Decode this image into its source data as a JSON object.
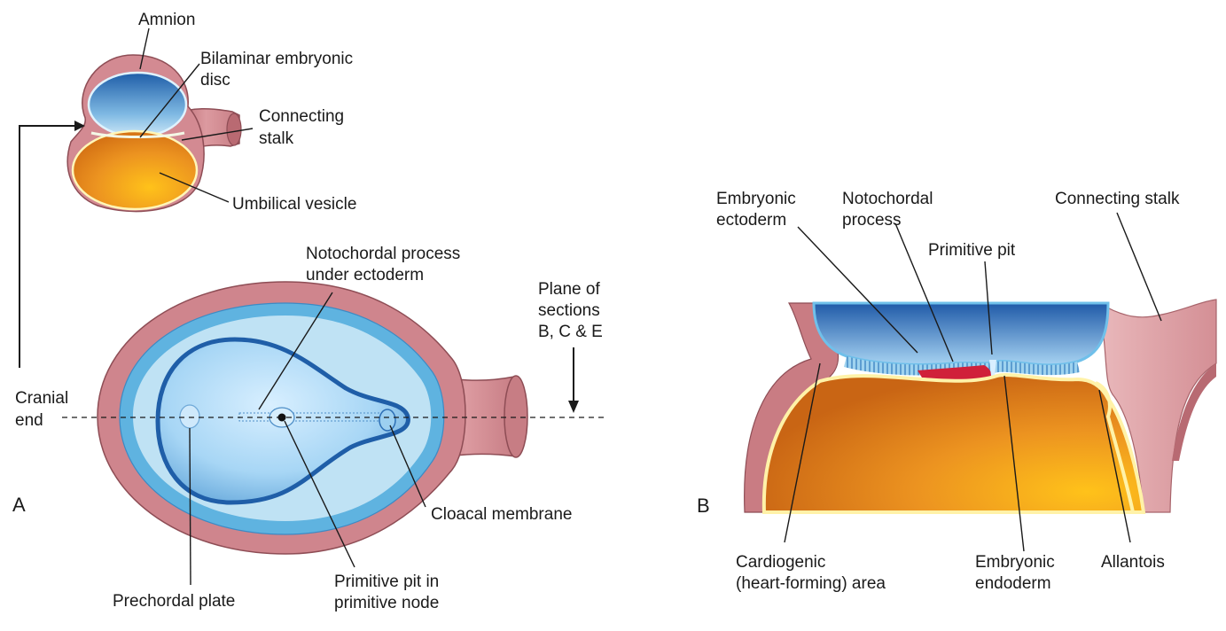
{
  "panel_a": {
    "letter": "A",
    "labels": {
      "amnion": "Amnion",
      "bilaminar_1": "Bilaminar embryonic",
      "bilaminar_2": "disc",
      "stalk_1": "Connecting",
      "stalk_2": "stalk",
      "umbilical": "Umbilical vesicle",
      "noto_1": "Notochordal process",
      "noto_2": "under ectoderm",
      "plane_1": "Plane of",
      "plane_2": "sections",
      "plane_3": "B, C & E",
      "cranial_1": "Cranial",
      "cranial_2": "end",
      "cloacal": "Cloacal membrane",
      "prechordal": "Prechordal plate",
      "pit_1": "Primitive pit in",
      "pit_2": "primitive node"
    }
  },
  "panel_b": {
    "letter": "B",
    "labels": {
      "ecto_1": "Embryonic",
      "ecto_2": "ectoderm",
      "noto_1": "Notochordal",
      "noto_2": "process",
      "pit": "Primitive pit",
      "stalk": "Connecting stalk",
      "cardio_1": "Cardiogenic",
      "cardio_2": "(heart-forming) area",
      "endo_1": "Embryonic",
      "endo_2": "endoderm",
      "allantois": "Allantois"
    }
  },
  "colors": {
    "amnion_pink": "#c97c83",
    "amniotic_blue": "#2f6fb8",
    "light_blue": "#a9d8ef",
    "yolk_orange": "#e38a1e",
    "notochord_red": "#d0203a"
  }
}
